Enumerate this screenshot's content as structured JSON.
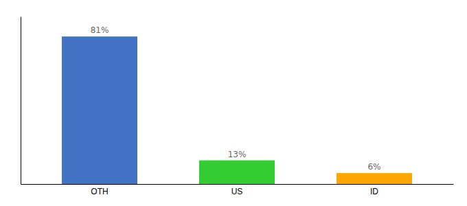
{
  "chart_data": {
    "type": "bar",
    "categories": [
      "OTH",
      "US",
      "ID"
    ],
    "values": [
      81,
      13,
      6
    ],
    "value_labels": [
      "81%",
      "13%",
      "6%"
    ],
    "colors": [
      "#4472C4",
      "#33CC33",
      "#FFA500"
    ],
    "ylim": [
      0,
      92
    ],
    "data_labels": true,
    "tick_labels": "x"
  }
}
